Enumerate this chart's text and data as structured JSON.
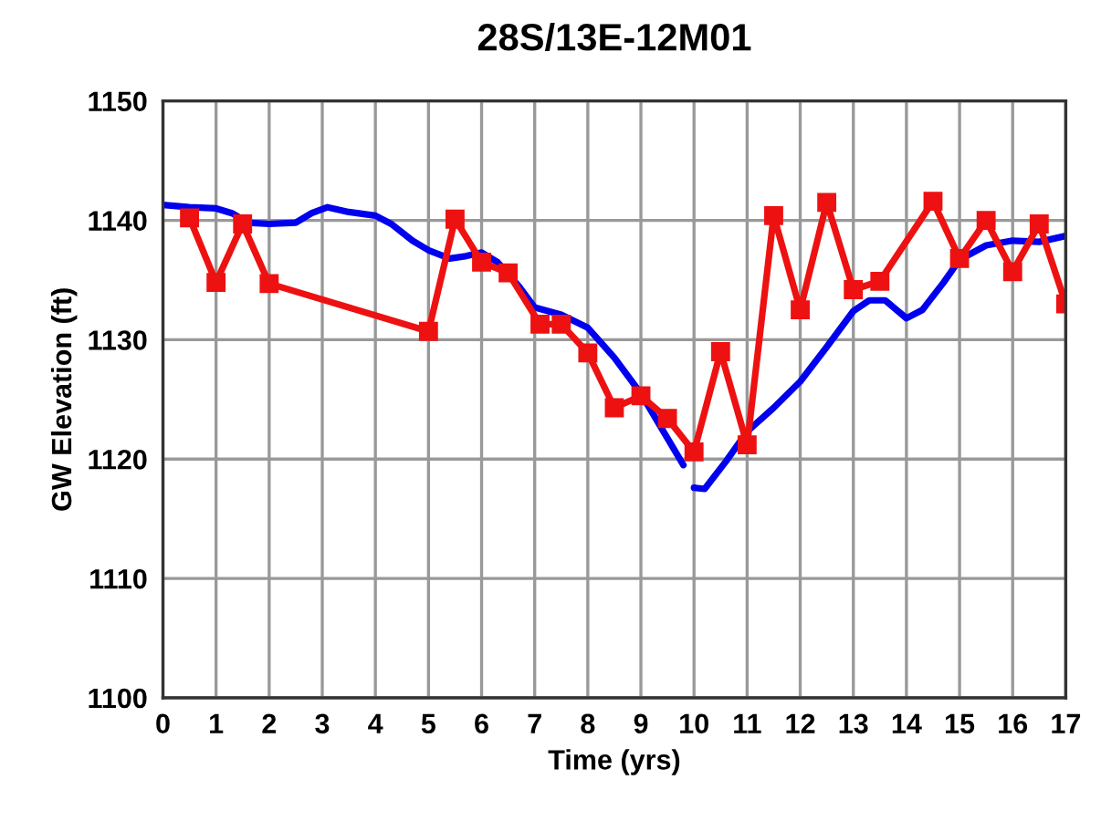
{
  "chart_data": {
    "type": "line",
    "title": "28S/13E-12M01",
    "xlabel": "Time (yrs)",
    "ylabel": "GW Elevation (ft)",
    "xlim": [
      0,
      17
    ],
    "xticks": [
      0,
      1,
      2,
      3,
      4,
      5,
      6,
      7,
      8,
      9,
      10,
      11,
      12,
      13,
      14,
      15,
      16,
      17
    ],
    "ylim": [
      1100,
      1150
    ],
    "yticks": [
      1100,
      1110,
      1120,
      1130,
      1140,
      1150
    ],
    "grid": true,
    "legend": false,
    "series": [
      {
        "color": "#0000ee",
        "marker": "none",
        "x": [
          0,
          0.5,
          1,
          1.3,
          1.6,
          2,
          2.5,
          2.8,
          3.1,
          3.5,
          4,
          4.3,
          4.7,
          5,
          5.4,
          5.7,
          6,
          6.3,
          6.7,
          7,
          7.5,
          8,
          8.5,
          9,
          9.4,
          9.8,
          9.9,
          10.0,
          10.2,
          10.6,
          11.0,
          11.5,
          12,
          12.5,
          13,
          13.3,
          13.6,
          14,
          14.3,
          14.7,
          15,
          15.5,
          16,
          16.5,
          17
        ],
        "values": [
          1141.3,
          1141.1,
          1141.0,
          1140.6,
          1139.8,
          1139.7,
          1139.8,
          1140.6,
          1141.1,
          1140.7,
          1140.4,
          1139.7,
          1138.3,
          1137.5,
          1136.8,
          1137.0,
          1137.3,
          1136.5,
          1134.5,
          1132.7,
          1132.1,
          1131.0,
          1128.5,
          1125.5,
          1122.5,
          1119.5,
          null,
          1117.6,
          1117.5,
          1119.8,
          1122.3,
          1124.3,
          1126.5,
          1129.4,
          1132.4,
          1133.3,
          1133.3,
          1131.8,
          1132.5,
          1134.8,
          1136.7,
          1137.9,
          1138.3,
          1138.2,
          1138.7
        ]
      },
      {
        "color": "#ee1111",
        "marker": "square",
        "x": [
          0.5,
          1,
          1.5,
          2,
          5,
          5.5,
          6,
          6.5,
          7.1,
          7.5,
          8,
          8.5,
          9,
          9.5,
          10,
          10.5,
          11,
          11.5,
          12,
          12.5,
          13,
          13.5,
          14.5,
          15,
          15.5,
          16,
          16.5,
          17
        ],
        "values": [
          1140.2,
          1134.8,
          1139.7,
          1134.7,
          1130.7,
          1140.1,
          1136.5,
          1135.6,
          1131.3,
          1131.3,
          1128.9,
          1124.3,
          1125.3,
          1123.4,
          1120.6,
          1129.0,
          1121.2,
          1140.4,
          1132.5,
          1141.5,
          1134.2,
          1134.9,
          1141.6,
          1136.8,
          1140.0,
          1135.7,
          1139.7,
          1133.0
        ]
      }
    ]
  }
}
